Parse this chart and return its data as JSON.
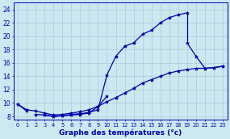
{
  "title": "Graphe des températures (°c)",
  "background_color": "#cce8f0",
  "grid_color": "#aaccdd",
  "line_color": "#0000aa",
  "x_hours": [
    0,
    1,
    2,
    3,
    4,
    5,
    6,
    7,
    8,
    9,
    10,
    11,
    12,
    13,
    14,
    15,
    16,
    17,
    18,
    19,
    20,
    21,
    22,
    23
  ],
  "curve_top": [
    null,
    null,
    null,
    null,
    null,
    null,
    null,
    null,
    null,
    null,
    null,
    null,
    null,
    null,
    null,
    null,
    null,
    null,
    null,
    null,
    23.5,
    null,
    null,
    null
  ],
  "line_steep": [
    null,
    null,
    8.3,
    8.2,
    8.0,
    8.1,
    8.3,
    8.4,
    8.6,
    9.0,
    14.2,
    17.0,
    18.5,
    19.0,
    20.3,
    20.9,
    22.0,
    22.8,
    23.2,
    23.5,
    null,
    null,
    null,
    null
  ],
  "line_drop": [
    null,
    null,
    null,
    null,
    null,
    null,
    null,
    null,
    null,
    null,
    null,
    null,
    null,
    null,
    null,
    null,
    null,
    null,
    null,
    19.0,
    17.0,
    15.2,
    15.3,
    15.5
  ],
  "line_early": [
    9.8,
    8.8,
    null,
    8.2,
    8.0,
    8.1,
    8.2,
    8.3,
    8.5,
    9.5,
    11.0,
    null,
    null,
    null,
    null,
    null,
    null,
    null,
    null,
    null,
    null,
    null,
    null,
    null
  ],
  "line_gradual": [
    null,
    null,
    null,
    null,
    null,
    null,
    null,
    null,
    null,
    null,
    null,
    null,
    null,
    null,
    null,
    null,
    null,
    null,
    null,
    null,
    null,
    15.2,
    15.3,
    15.5
  ],
  "line_slow": [
    9.8,
    9.0,
    8.8,
    8.5,
    8.2,
    8.3,
    8.5,
    8.7,
    9.0,
    9.5,
    10.2,
    10.8,
    11.5,
    12.2,
    13.0,
    13.5,
    14.0,
    14.5,
    14.8,
    15.0,
    15.2,
    15.2,
    15.3,
    15.5
  ],
  "ylim_min": 7.5,
  "ylim_max": 25.0,
  "yticks": [
    8,
    10,
    12,
    14,
    16,
    18,
    20,
    22,
    24
  ]
}
